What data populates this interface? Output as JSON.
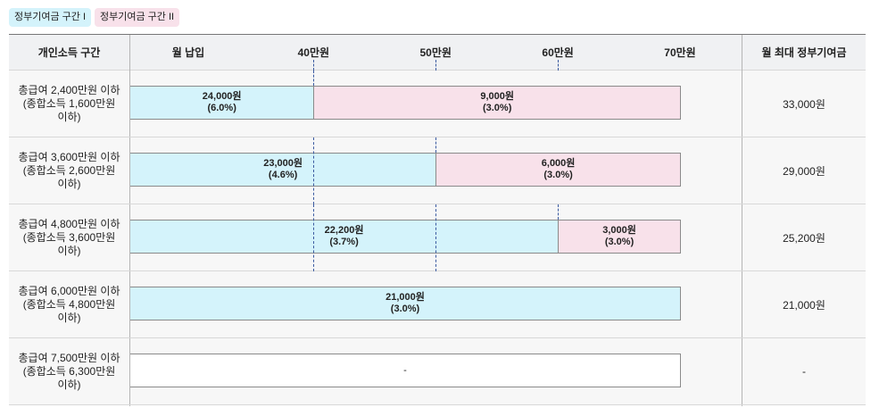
{
  "legend": [
    {
      "label": "정부기여금 구간 I",
      "color": "#d4f3fb"
    },
    {
      "label": "정부기여금 구간 II",
      "color": "#f8e1ea"
    }
  ],
  "header": {
    "income_col": "개인소득 구간",
    "payment_col": "월 납입",
    "max_col": "월 최대 정부기여금"
  },
  "chart_data": {
    "type": "bar",
    "orientation": "horizontal-stacked",
    "x_ticks": [
      "40만원",
      "50만원",
      "60만원",
      "70만원"
    ],
    "xlim": [
      25,
      70
    ],
    "series": [
      {
        "name": "정부기여금 구간 I",
        "color": "#d4f3fb"
      },
      {
        "name": "정부기여금 구간 II",
        "color": "#f8e1ea"
      }
    ],
    "rows": [
      {
        "label_lines": [
          "총급여 2,400만원 이하",
          "(종합소득 1,600만원",
          "이하)"
        ],
        "segments": [
          {
            "from": 25,
            "to": 40,
            "amount": "24,000원",
            "rate": "(6.0%)",
            "series": 0
          },
          {
            "from": 40,
            "to": 70,
            "amount": "9,000원",
            "rate": "(3.0%)",
            "series": 1
          }
        ],
        "max": "33,000원"
      },
      {
        "label_lines": [
          "총급여 3,600만원 이하",
          "(종합소득 2,600만원",
          "이하)"
        ],
        "segments": [
          {
            "from": 25,
            "to": 50,
            "amount": "23,000원",
            "rate": "(4.6%)",
            "series": 0
          },
          {
            "from": 50,
            "to": 70,
            "amount": "6,000원",
            "rate": "(3.0%)",
            "series": 1
          }
        ],
        "max": "29,000원"
      },
      {
        "label_lines": [
          "총급여 4,800만원 이하",
          "(종합소득 3,600만원",
          "이하)"
        ],
        "segments": [
          {
            "from": 25,
            "to": 60,
            "amount": "22,200원",
            "rate": "(3.7%)",
            "series": 0
          },
          {
            "from": 60,
            "to": 70,
            "amount": "3,000원",
            "rate": "(3.0%)",
            "series": 1
          }
        ],
        "max": "25,200원"
      },
      {
        "label_lines": [
          "총급여 6,000만원 이하",
          "(종합소득 4,800만원",
          "이하)"
        ],
        "segments": [
          {
            "from": 25,
            "to": 70,
            "amount": "21,000원",
            "rate": "(3.0%)",
            "series": 0
          }
        ],
        "max": "21,000원"
      },
      {
        "label_lines": [
          "총급여 7,500만원 이하",
          "(종합소득 6,300만원",
          "이하)"
        ],
        "segments": [
          {
            "from": 25,
            "to": 70,
            "amount": "-",
            "rate": "",
            "series": -1
          }
        ],
        "max": "-"
      }
    ]
  }
}
